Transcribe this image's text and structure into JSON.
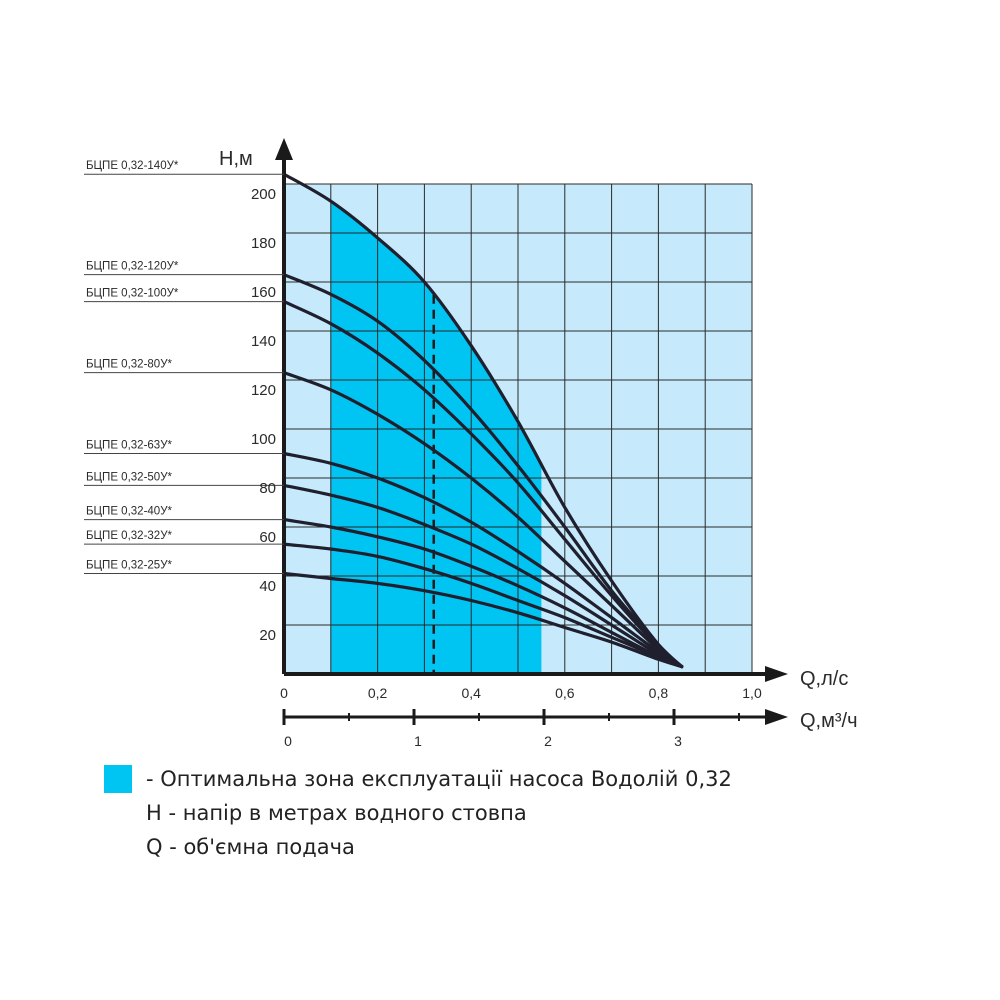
{
  "colors": {
    "background_zone": "#c6e9fb",
    "optimal_zone": "#00c4f2",
    "curve": "#1f1f2e",
    "grid": "#2a2a2a",
    "axis": "#1a1a1a"
  },
  "chart_data": {
    "type": "line",
    "y_axis_label": "Н,м",
    "x_axis_label": "Q,л/с",
    "x2_axis_label": "Q,м³/ч",
    "x_ticks": [
      0,
      0.1,
      0.2,
      0.3,
      0.4,
      0.5,
      0.6,
      0.7,
      0.8,
      0.9,
      1.0
    ],
    "x_tick_labels": [
      "0",
      "0,2",
      "0,4",
      "0,6",
      "0,8",
      "1,0"
    ],
    "x_tick_label_values": [
      0,
      0.2,
      0.4,
      0.6,
      0.8,
      1.0
    ],
    "y_tick_labels": [
      "20",
      "40",
      "60",
      "80",
      "100",
      "120",
      "140",
      "160",
      "180",
      "200"
    ],
    "y_tick_values": [
      20,
      40,
      60,
      80,
      100,
      120,
      140,
      160,
      180,
      200
    ],
    "x2_tick_labels": [
      "0",
      "1",
      "2",
      "3"
    ],
    "x2_tick_values": [
      0,
      1,
      2,
      3
    ],
    "x2_minor_values": [
      0.5,
      1.5,
      2.5,
      3.5
    ],
    "xlim": [
      0,
      1.0
    ],
    "ylim": [
      0,
      200
    ],
    "x2lim": [
      0,
      3.6
    ],
    "optimal_zone": {
      "x_from": 0.1,
      "x_to": 0.55
    },
    "nominal_flow_line": {
      "x": 0.32,
      "style": "dashed"
    },
    "convergence_point": {
      "x": 0.85,
      "y": 3
    },
    "series": [
      {
        "name": "БЦПЕ 0,32-140У*",
        "points": [
          [
            0,
            204
          ],
          [
            0.1,
            193
          ],
          [
            0.2,
            178
          ],
          [
            0.3,
            160
          ],
          [
            0.4,
            134
          ],
          [
            0.5,
            103
          ],
          [
            0.6,
            68
          ],
          [
            0.7,
            38
          ],
          [
            0.8,
            12
          ],
          [
            0.85,
            3
          ]
        ]
      },
      {
        "name": "БЦПЕ 0,32-120У*",
        "points": [
          [
            0,
            163
          ],
          [
            0.1,
            155
          ],
          [
            0.2,
            144
          ],
          [
            0.3,
            128
          ],
          [
            0.4,
            108
          ],
          [
            0.5,
            85
          ],
          [
            0.6,
            60
          ],
          [
            0.7,
            34
          ],
          [
            0.8,
            12
          ],
          [
            0.85,
            3
          ]
        ]
      },
      {
        "name": "БЦПЕ 0,32-100У*",
        "points": [
          [
            0,
            152
          ],
          [
            0.1,
            143
          ],
          [
            0.2,
            131
          ],
          [
            0.3,
            116
          ],
          [
            0.4,
            98
          ],
          [
            0.5,
            78
          ],
          [
            0.6,
            55
          ],
          [
            0.7,
            32
          ],
          [
            0.8,
            11
          ],
          [
            0.85,
            3
          ]
        ]
      },
      {
        "name": "БЦПЕ 0,32-80У*",
        "points": [
          [
            0,
            123
          ],
          [
            0.1,
            116
          ],
          [
            0.2,
            106
          ],
          [
            0.3,
            94
          ],
          [
            0.4,
            80
          ],
          [
            0.5,
            64
          ],
          [
            0.6,
            46
          ],
          [
            0.7,
            28
          ],
          [
            0.8,
            10
          ],
          [
            0.85,
            3
          ]
        ]
      },
      {
        "name": "БЦПЕ 0,32-63У*",
        "points": [
          [
            0,
            90
          ],
          [
            0.1,
            86
          ],
          [
            0.2,
            80
          ],
          [
            0.3,
            72
          ],
          [
            0.4,
            62
          ],
          [
            0.5,
            50
          ],
          [
            0.6,
            37
          ],
          [
            0.7,
            23
          ],
          [
            0.8,
            9
          ],
          [
            0.85,
            3
          ]
        ]
      },
      {
        "name": "БЦПЕ 0,32-50У*",
        "points": [
          [
            0,
            77
          ],
          [
            0.1,
            73
          ],
          [
            0.2,
            68
          ],
          [
            0.3,
            61
          ],
          [
            0.4,
            53
          ],
          [
            0.5,
            43
          ],
          [
            0.6,
            32
          ],
          [
            0.7,
            20
          ],
          [
            0.8,
            8
          ],
          [
            0.85,
            3
          ]
        ]
      },
      {
        "name": "БЦПЕ 0,32-40У*",
        "points": [
          [
            0,
            63
          ],
          [
            0.1,
            60
          ],
          [
            0.2,
            56
          ],
          [
            0.3,
            51
          ],
          [
            0.4,
            44
          ],
          [
            0.5,
            36
          ],
          [
            0.6,
            27
          ],
          [
            0.7,
            17
          ],
          [
            0.8,
            7
          ],
          [
            0.85,
            3
          ]
        ]
      },
      {
        "name": "БЦПЕ 0,32-32У*",
        "points": [
          [
            0,
            53
          ],
          [
            0.1,
            51
          ],
          [
            0.2,
            48
          ],
          [
            0.3,
            43
          ],
          [
            0.4,
            37
          ],
          [
            0.5,
            30
          ],
          [
            0.6,
            23
          ],
          [
            0.7,
            15
          ],
          [
            0.8,
            7
          ],
          [
            0.85,
            3
          ]
        ]
      },
      {
        "name": "БЦПЕ 0,32-25У*",
        "points": [
          [
            0,
            41
          ],
          [
            0.1,
            39
          ],
          [
            0.2,
            37
          ],
          [
            0.3,
            34
          ],
          [
            0.4,
            30
          ],
          [
            0.5,
            25
          ],
          [
            0.6,
            19
          ],
          [
            0.7,
            13
          ],
          [
            0.8,
            6
          ],
          [
            0.85,
            3
          ]
        ]
      }
    ],
    "series_labels": [
      "БЦПЕ 0,32-140У*",
      "БЦПЕ 0,32-120У*",
      "БЦПЕ 0,32-100У*",
      "БЦПЕ 0,32-80У*",
      "БЦПЕ 0,32-63У*",
      "БЦПЕ 0,32-50У*",
      "БЦПЕ 0,32-40У*",
      "БЦПЕ 0,32-32У*",
      "БЦПЕ 0,32-25У*"
    ],
    "grid": true
  },
  "legend": {
    "optimal_zone_text": "- Оптимальна зона експлуатації насоса Водолій 0,32",
    "h_text": "Н - напір в метрах водного стовпа",
    "q_text": "Q - об'ємна подача"
  }
}
